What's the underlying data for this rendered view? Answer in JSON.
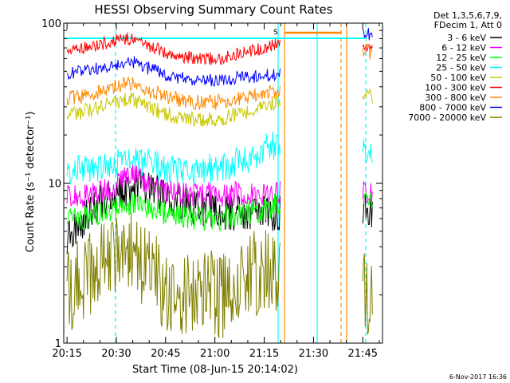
{
  "chart_data": {
    "type": "line",
    "title": "HESSI Observing Summary Count Rates",
    "xlabel": "Start Time (08-Jun-15 20:14:02)",
    "ylabel": "Count Rate (s⁻¹ detector⁻¹)",
    "x_range": [
      "20:14",
      "21:51"
    ],
    "ylim": [
      1,
      100
    ],
    "y_scale": "log",
    "x_ticks": [
      "20:15",
      "20:30",
      "20:45",
      "21:00",
      "21:15",
      "21:30",
      "21:45"
    ],
    "y_ticks": [
      "1",
      "10",
      "100"
    ],
    "legend": {
      "position": "right",
      "header": [
        "Det 1,3,5,6,7,9,",
        "FDecim 1, Att 0"
      ]
    },
    "annotation_s": "S",
    "timestamp": "6-Nov-2017 16:36",
    "series": [
      {
        "name": "3 - 6 keV",
        "color": "#000000",
        "x": [
          "20:15",
          "20:19",
          "20:23",
          "20:28",
          "20:32",
          "20:36",
          "20:41",
          "20:45",
          "20:50",
          "20:55",
          "21:00",
          "21:05",
          "21:10",
          "21:15",
          "21:20",
          "21:45",
          "21:48"
        ],
        "values": [
          4.5,
          5.5,
          7.0,
          8.5,
          8.8,
          9.5,
          9.0,
          8.0,
          7.5,
          7.0,
          6.8,
          6.5,
          6.5,
          6.5,
          6.5,
          7.0,
          6.5
        ]
      },
      {
        "name": "6 - 12 keV",
        "color": "#ff00ff",
        "x": [
          "20:15",
          "20:20",
          "20:25",
          "20:30",
          "20:33",
          "20:35",
          "20:38",
          "20:42",
          "20:48",
          "20:55",
          "21:00",
          "21:05",
          "21:10",
          "21:15",
          "21:20",
          "21:45",
          "21:48"
        ],
        "values": [
          8.5,
          8.2,
          8.8,
          9.5,
          11.5,
          12.0,
          10.0,
          9.0,
          8.8,
          8.5,
          8.5,
          8.5,
          8.5,
          8.5,
          8.8,
          9.0,
          8.5
        ]
      },
      {
        "name": "12 - 25 keV",
        "color": "#00ff00",
        "x": [
          "20:15",
          "20:20",
          "20:25",
          "20:30",
          "20:34",
          "20:40",
          "20:45",
          "20:50",
          "20:55",
          "21:00",
          "21:05",
          "21:10",
          "21:15",
          "21:20",
          "21:45",
          "21:48"
        ],
        "values": [
          6.2,
          6.0,
          6.5,
          7.0,
          7.5,
          7.0,
          6.5,
          6.3,
          6.0,
          6.0,
          6.2,
          6.5,
          7.0,
          7.5,
          8.0,
          7.5
        ]
      },
      {
        "name": "25 - 50 keV",
        "color": "#00ffff",
        "x": [
          "20:15",
          "20:20",
          "20:25",
          "20:30",
          "20:34",
          "20:38",
          "20:43",
          "20:50",
          "20:55",
          "21:00",
          "21:05",
          "21:10",
          "21:15",
          "21:20",
          "21:45",
          "21:48"
        ],
        "values": [
          12.0,
          12.0,
          12.5,
          13.5,
          15.0,
          13.5,
          12.5,
          12.0,
          12.0,
          12.5,
          13.0,
          14.0,
          16.0,
          18.0,
          17.0,
          15.0
        ]
      },
      {
        "name": "50 - 100 keV",
        "color": "#c8c800",
        "x": [
          "20:15",
          "20:20",
          "20:25",
          "20:30",
          "20:34",
          "20:38",
          "20:45",
          "20:50",
          "20:55",
          "21:00",
          "21:05",
          "21:10",
          "21:15",
          "21:20",
          "21:45",
          "21:48"
        ],
        "values": [
          27,
          28,
          30,
          32,
          34,
          31,
          27,
          26,
          25,
          25,
          26,
          28,
          30,
          33,
          36,
          35
        ]
      },
      {
        "name": "100 - 300 keV",
        "color": "#ff0000",
        "x": [
          "20:15",
          "20:20",
          "20:25",
          "20:30",
          "20:34",
          "20:40",
          "20:47",
          "20:55",
          "21:00",
          "21:05",
          "21:10",
          "21:15",
          "21:20",
          "21:45",
          "21:48"
        ],
        "values": [
          67,
          70,
          74,
          78,
          80,
          72,
          63,
          60,
          60,
          62,
          66,
          71,
          76,
          72,
          68
        ]
      },
      {
        "name": "300 - 800 keV",
        "color": "#ff8800",
        "x": [
          "20:15",
          "20:20",
          "20:25",
          "20:30",
          "20:34",
          "20:40",
          "20:47",
          "20:55",
          "21:00",
          "21:05",
          "21:10",
          "21:15",
          "21:20",
          "21:45",
          "21:48"
        ],
        "values": [
          34,
          35,
          37,
          40,
          42,
          38,
          34,
          32,
          32,
          33,
          35,
          36,
          38,
          70,
          64
        ]
      },
      {
        "name": "800 - 7000 keV",
        "color": "#0000ff",
        "x": [
          "20:15",
          "20:20",
          "20:25",
          "20:30",
          "20:34",
          "20:40",
          "20:47",
          "20:55",
          "21:00",
          "21:05",
          "21:10",
          "21:15",
          "21:20",
          "21:45",
          "21:48"
        ],
        "values": [
          48,
          50,
          52,
          55,
          58,
          52,
          46,
          44,
          44,
          45,
          46,
          47,
          48,
          90,
          82
        ]
      },
      {
        "name": "7000 - 20000 keV",
        "color": "#808000",
        "x": [
          "20:15",
          "20:20",
          "20:25",
          "20:30",
          "20:32",
          "20:34",
          "20:36",
          "20:40",
          "20:45",
          "20:50",
          "20:55",
          "21:00",
          "21:05",
          "21:10",
          "21:15",
          "21:20",
          "21:45",
          "21:48"
        ],
        "values": [
          2.0,
          2.5,
          3.0,
          3.5,
          4.0,
          4.0,
          3.5,
          3.0,
          2.0,
          2.0,
          2.0,
          2.0,
          2.0,
          2.5,
          3.0,
          3.0,
          2.0,
          2.0
        ]
      }
    ]
  }
}
